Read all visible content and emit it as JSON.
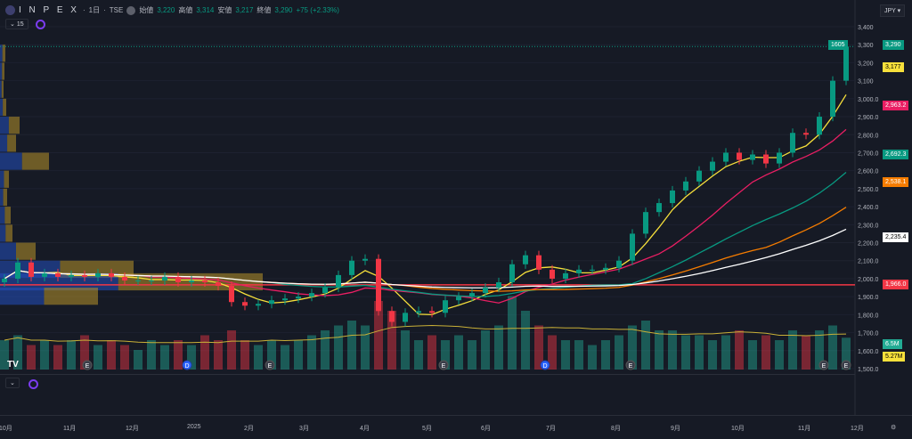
{
  "header": {
    "symbol": "I N P E X",
    "interval": "1日",
    "exchange": "TSE",
    "open_label": "始値",
    "open": "3,220",
    "high_label": "高値",
    "high": "3,314",
    "low_label": "安値",
    "low": "3,217",
    "close_label": "終値",
    "close": "3,290",
    "change": "+75 (+2.33%)",
    "indicator_count": "15"
  },
  "currency": "JPY",
  "colors": {
    "up": "#089981",
    "down": "#f23645",
    "bg": "#161a25"
  },
  "tags": {
    "countdown": "1605",
    "last_price": "3,290",
    "ma_fast": "3,177",
    "ma2": "2,963.2",
    "ma3": "2,692.3",
    "ma4": "2,538.1",
    "ma5": "2,235.4",
    "hline": "1,966.0",
    "vol": "6.5M",
    "vol_ma": "5.27M"
  },
  "chart_data": {
    "type": "candlestick",
    "price_ticks": [
      3400,
      3300,
      3200,
      3100,
      3000,
      2900,
      2800,
      2700,
      2600,
      2500,
      2400,
      2300,
      2200,
      2100,
      2000,
      1900,
      1800,
      1700,
      1600,
      1500
    ],
    "price_tick_labels": [
      "3,400",
      "3,300",
      "3,200",
      "3,100",
      "3,000.0",
      "2,900.0",
      "2,800.0",
      "2,700.0",
      "2,600.0",
      "2,500.0",
      "2,400.0",
      "2,300.0",
      "2,200.0",
      "2,100.0",
      "2,000.0",
      "1,900.0",
      "1,800.0",
      "1,700.0",
      "1,600.0",
      "1,500.0"
    ],
    "ylim": [
      1500,
      3400
    ],
    "time_labels": [
      "10月",
      "11月",
      "12月",
      "2025",
      "2月",
      "3月",
      "4月",
      "5月",
      "6月",
      "7月",
      "8月",
      "9月",
      "10月",
      "11月",
      "12月"
    ],
    "closes": [
      2000,
      2090,
      2010,
      2030,
      2010,
      2020,
      2010,
      2030,
      2010,
      1990,
      1990,
      1990,
      2010,
      1980,
      1990,
      1980,
      1960,
      1870,
      1850,
      1860,
      1880,
      1890,
      1900,
      1920,
      1950,
      2020,
      2100,
      2110,
      1820,
      1760,
      1810,
      1820,
      1810,
      1880,
      1900,
      1920,
      1950,
      1980,
      2080,
      2130,
      2050,
      2000,
      2030,
      2050,
      2050,
      2060,
      2100,
      2250,
      2370,
      2420,
      2490,
      2540,
      2600,
      2650,
      2700,
      2660,
      2690,
      2640,
      2700,
      2810,
      2800,
      2900,
      3100,
      3290
    ],
    "volume_m": [
      6,
      7,
      5,
      6,
      5,
      6,
      7,
      5,
      6,
      5,
      4,
      6,
      5,
      6,
      5,
      7,
      6,
      8,
      6,
      5,
      6,
      5,
      6,
      7,
      8,
      9,
      10,
      9,
      14,
      12,
      8,
      6,
      7,
      6,
      7,
      6,
      8,
      9,
      15,
      12,
      9,
      7,
      6,
      6,
      5,
      6,
      7,
      9,
      10,
      8,
      8,
      7,
      7,
      6,
      7,
      8,
      6,
      7,
      6,
      8,
      7,
      8,
      9,
      6.5
    ],
    "hline": 1966,
    "profile": [
      [
        3250,
        6
      ],
      [
        3150,
        5
      ],
      [
        3050,
        4
      ],
      [
        2950,
        7
      ],
      [
        2850,
        22
      ],
      [
        2750,
        18
      ],
      [
        2650,
        55
      ],
      [
        2550,
        10
      ],
      [
        2450,
        8
      ],
      [
        2350,
        12
      ],
      [
        2250,
        14
      ],
      [
        2150,
        40
      ],
      [
        2050,
        150
      ],
      [
        1980,
        295
      ],
      [
        1900,
        110
      ]
    ]
  },
  "events": [
    "E",
    "D",
    "E",
    "E",
    "D",
    "E",
    "E",
    "E"
  ]
}
